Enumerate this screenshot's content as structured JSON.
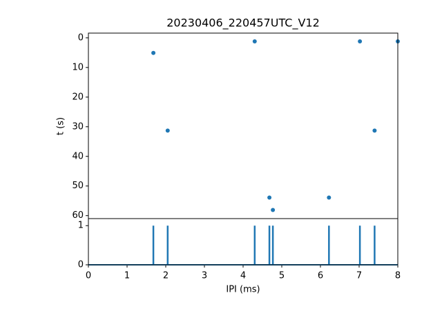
{
  "chart_data": [
    {
      "type": "scatter",
      "title": "20230406_220457UTC_V12",
      "y_label": "t (s)",
      "color": "#1f77b4",
      "x": [
        1.68,
        2.05,
        4.3,
        4.68,
        4.77,
        6.22,
        7.02,
        7.4,
        8.0
      ],
      "values": [
        5.1,
        31.3,
        1.2,
        53.9,
        58.1,
        53.9,
        1.2,
        31.3,
        1.2
      ],
      "xlim": [
        0,
        8
      ],
      "ylim": [
        61,
        -1.6
      ],
      "yticks": [
        0,
        10,
        20,
        30,
        40,
        50,
        60
      ]
    },
    {
      "type": "spike",
      "x_label": "IPI (ms)",
      "color": "#1f77b4",
      "x": [
        1.68,
        2.05,
        4.3,
        4.68,
        4.77,
        6.22,
        7.02,
        7.4
      ],
      "values": [
        1,
        1,
        1,
        1,
        1,
        1,
        1,
        1
      ],
      "xlim": [
        0,
        8
      ],
      "xticks": [
        0,
        1,
        2,
        3,
        4,
        5,
        6,
        7,
        8
      ],
      "ylim": [
        0,
        1.18
      ],
      "yticks": [
        0,
        1
      ]
    }
  ]
}
